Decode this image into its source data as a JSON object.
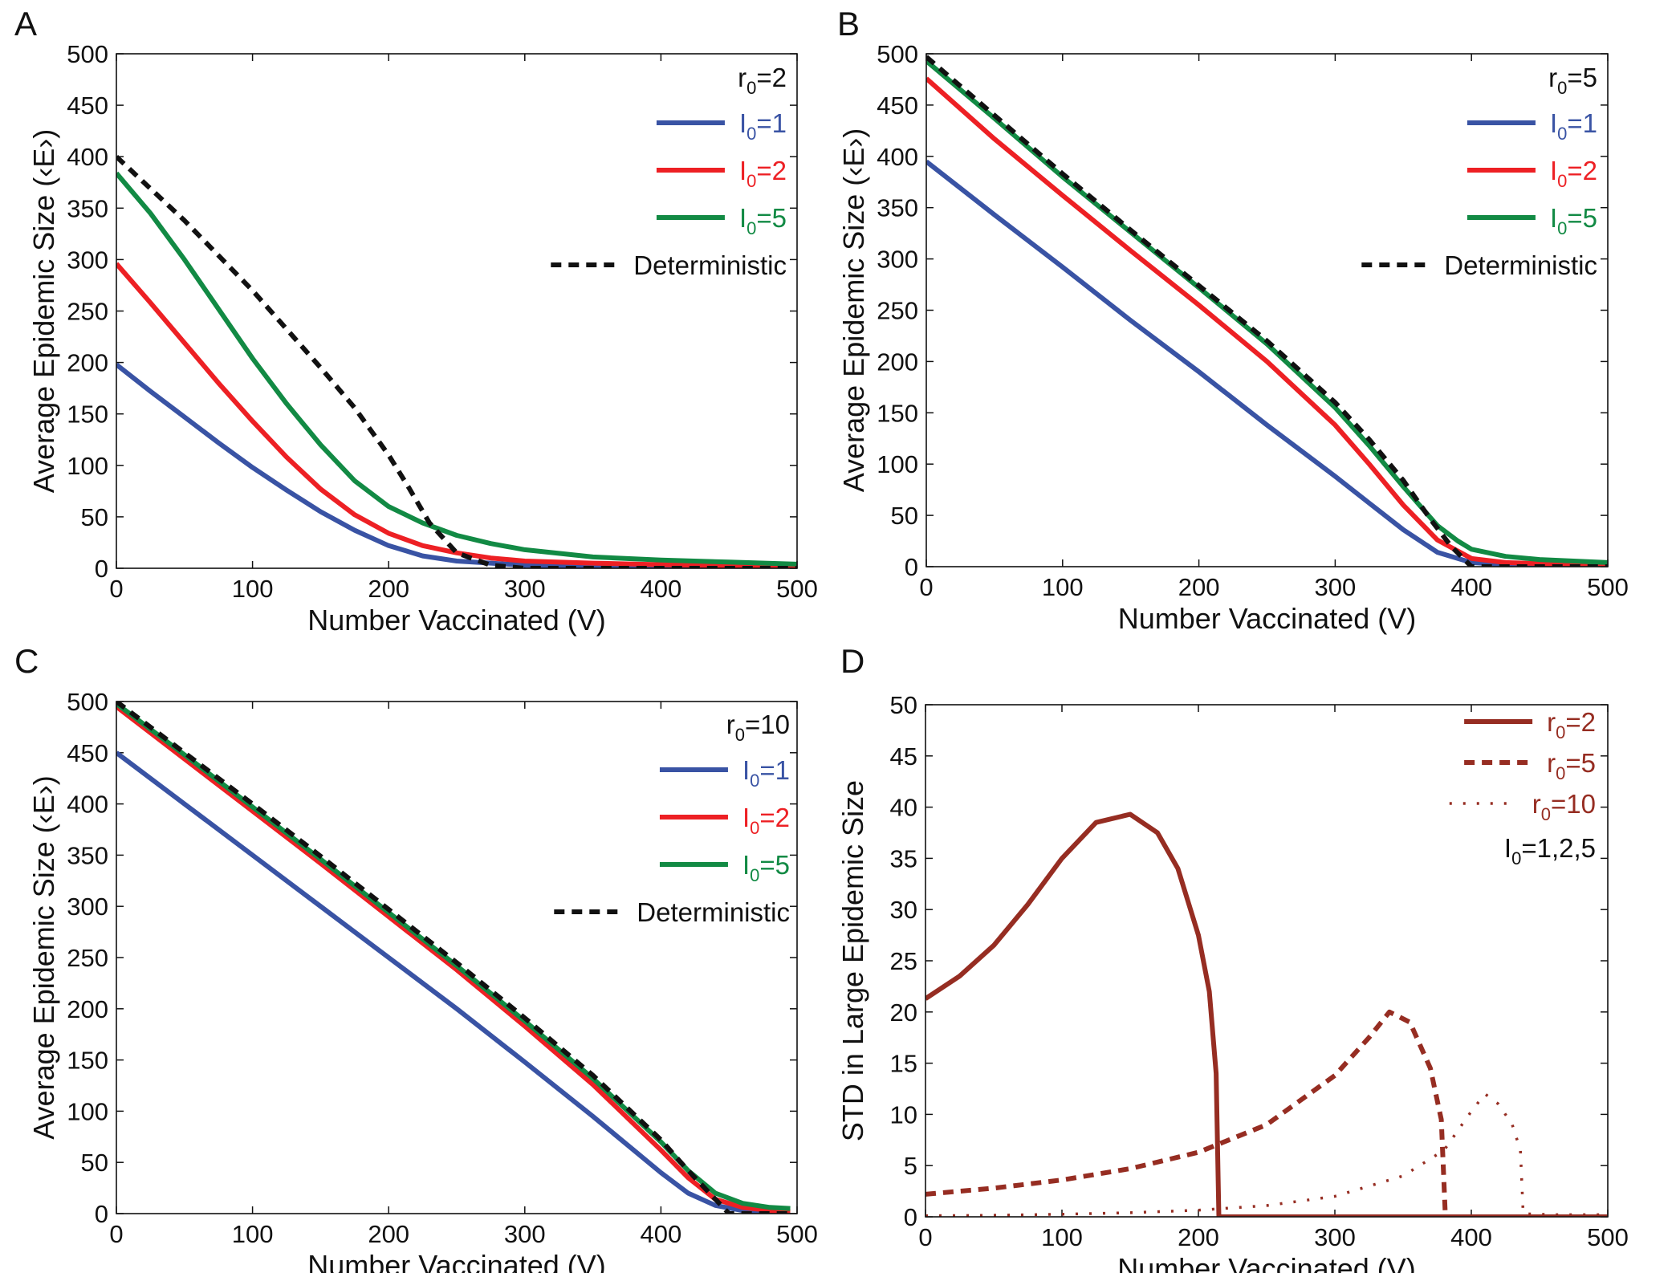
{
  "colors": {
    "blue": "#3953a4",
    "red": "#ed2024",
    "green": "#128a44",
    "black": "#111111",
    "brown": "#962d22"
  },
  "chart_data": [
    {
      "type": "line",
      "panel_label": "A",
      "xlabel": "Number Vaccinated (V)",
      "ylabel": "Average Epidemic Size (‹E›)",
      "xlim": [
        0,
        500
      ],
      "ylim": [
        0,
        500
      ],
      "xticks": [
        "0",
        "100",
        "200",
        "300",
        "400",
        "500"
      ],
      "yticks": [
        "0",
        "50",
        "100",
        "150",
        "200",
        "250",
        "300",
        "350",
        "400",
        "450",
        "500"
      ],
      "legend_title": {
        "main": "r",
        "sub": "0",
        "tail": "=2"
      },
      "legend": [
        {
          "main": "I",
          "sub": "0",
          "tail": "=1",
          "color_key": "blue",
          "style": "solid"
        },
        {
          "main": "I",
          "sub": "0",
          "tail": "=2",
          "color_key": "red",
          "style": "solid"
        },
        {
          "main": "I",
          "sub": "0",
          "tail": "=5",
          "color_key": "green",
          "style": "solid"
        },
        {
          "main": "Deterministic",
          "sub": "",
          "tail": "",
          "color_key": "black",
          "style": "dashed"
        }
      ],
      "series": [
        {
          "name": "I0=1",
          "color_key": "blue",
          "style": "solid",
          "x": [
            0,
            25,
            50,
            75,
            100,
            125,
            150,
            175,
            200,
            225,
            250,
            300,
            350,
            400,
            450,
            500
          ],
          "y": [
            198,
            172,
            147,
            122,
            98,
            76,
            55,
            37,
            22,
            12,
            7,
            3,
            2,
            1.5,
            1.2,
            1
          ]
        },
        {
          "name": "I0=2",
          "color_key": "red",
          "style": "solid",
          "x": [
            0,
            25,
            50,
            75,
            100,
            125,
            150,
            175,
            200,
            225,
            250,
            275,
            300,
            350,
            400,
            450,
            500
          ],
          "y": [
            296,
            258,
            219,
            180,
            143,
            108,
            77,
            52,
            34,
            22,
            15,
            10,
            7,
            5,
            3.5,
            2.5,
            2
          ]
        },
        {
          "name": "I0=5",
          "color_key": "green",
          "style": "solid",
          "x": [
            0,
            25,
            50,
            75,
            100,
            125,
            150,
            175,
            200,
            225,
            250,
            275,
            300,
            350,
            400,
            450,
            500
          ],
          "y": [
            384,
            345,
            300,
            252,
            204,
            160,
            120,
            85,
            60,
            44,
            32,
            24,
            18,
            11,
            8,
            6,
            4
          ]
        },
        {
          "name": "Deterministic",
          "color_key": "black",
          "style": "dashed",
          "x": [
            0,
            50,
            100,
            150,
            175,
            200,
            215,
            230,
            250,
            275,
            300,
            350,
            400,
            450,
            500
          ],
          "y": [
            400,
            338,
            270,
            195,
            156,
            110,
            78,
            44,
            15,
            3,
            0,
            0,
            0,
            0,
            0
          ]
        }
      ]
    },
    {
      "type": "line",
      "panel_label": "B",
      "xlabel": "Number Vaccinated (V)",
      "ylabel": "Average Epidemic Size (‹E›)",
      "xlim": [
        0,
        500
      ],
      "ylim": [
        0,
        500
      ],
      "xticks": [
        "0",
        "100",
        "200",
        "300",
        "400",
        "500"
      ],
      "yticks": [
        "0",
        "50",
        "100",
        "150",
        "200",
        "250",
        "300",
        "350",
        "400",
        "450",
        "500"
      ],
      "legend_title": {
        "main": "r",
        "sub": "0",
        "tail": "=5"
      },
      "legend": [
        {
          "main": "I",
          "sub": "0",
          "tail": "=1",
          "color_key": "blue",
          "style": "solid"
        },
        {
          "main": "I",
          "sub": "0",
          "tail": "=2",
          "color_key": "red",
          "style": "solid"
        },
        {
          "main": "I",
          "sub": "0",
          "tail": "=5",
          "color_key": "green",
          "style": "solid"
        },
        {
          "main": "Deterministic",
          "sub": "",
          "tail": "",
          "color_key": "black",
          "style": "dashed"
        }
      ],
      "series": [
        {
          "name": "I0=1",
          "color_key": "blue",
          "style": "solid",
          "x": [
            0,
            50,
            100,
            150,
            200,
            250,
            300,
            325,
            350,
            375,
            400,
            425,
            450,
            500
          ],
          "y": [
            395,
            343,
            292,
            240,
            190,
            138,
            88,
            62,
            36,
            14,
            4,
            2,
            1.5,
            1
          ]
        },
        {
          "name": "I0=2",
          "color_key": "red",
          "style": "solid",
          "x": [
            0,
            50,
            100,
            150,
            200,
            250,
            300,
            325,
            350,
            375,
            400,
            425,
            450,
            500
          ],
          "y": [
            476,
            417,
            362,
            308,
            255,
            200,
            138,
            100,
            60,
            26,
            8,
            4,
            3,
            2
          ]
        },
        {
          "name": "I0=5",
          "color_key": "green",
          "style": "solid",
          "x": [
            0,
            50,
            100,
            150,
            200,
            250,
            300,
            325,
            350,
            375,
            390,
            400,
            425,
            450,
            500
          ],
          "y": [
            493,
            437,
            380,
            326,
            272,
            217,
            155,
            118,
            78,
            40,
            25,
            17,
            10,
            7,
            4
          ]
        },
        {
          "name": "Deterministic",
          "color_key": "black",
          "style": "dashed",
          "x": [
            0,
            50,
            100,
            150,
            200,
            250,
            300,
            325,
            350,
            370,
            385,
            400,
            425,
            450,
            500
          ],
          "y": [
            497,
            440,
            383,
            328,
            274,
            220,
            160,
            124,
            84,
            46,
            20,
            0,
            0,
            0,
            0
          ]
        }
      ]
    },
    {
      "type": "line",
      "panel_label": "C",
      "xlabel": "Number Vaccinated (V)",
      "ylabel": "Average Epidemic Size (‹E›)",
      "xlim": [
        0,
        500
      ],
      "ylim": [
        0,
        500
      ],
      "xticks": [
        "0",
        "100",
        "200",
        "300",
        "400",
        "500"
      ],
      "yticks": [
        "0",
        "50",
        "100",
        "150",
        "200",
        "250",
        "300",
        "350",
        "400",
        "450",
        "500"
      ],
      "legend_title": {
        "main": "r",
        "sub": "0",
        "tail": "=10"
      },
      "legend": [
        {
          "main": "I",
          "sub": "0",
          "tail": "=1",
          "color_key": "blue",
          "style": "solid"
        },
        {
          "main": "I",
          "sub": "0",
          "tail": "=2",
          "color_key": "red",
          "style": "solid"
        },
        {
          "main": "I",
          "sub": "0",
          "tail": "=5",
          "color_key": "green",
          "style": "solid"
        },
        {
          "main": "Deterministic",
          "sub": "",
          "tail": "",
          "color_key": "black",
          "style": "dashed"
        }
      ],
      "series": [
        {
          "name": "I0=1",
          "color_key": "blue",
          "style": "solid",
          "x": [
            0,
            50,
            100,
            150,
            200,
            250,
            300,
            350,
            400,
            420,
            440,
            460,
            480,
            495
          ],
          "y": [
            450,
            400,
            350,
            300,
            250,
            200,
            148,
            95,
            40,
            20,
            8,
            3,
            1,
            1
          ]
        },
        {
          "name": "I0=2",
          "color_key": "red",
          "style": "solid",
          "x": [
            0,
            50,
            100,
            150,
            200,
            250,
            300,
            350,
            400,
            420,
            440,
            460,
            480,
            495
          ],
          "y": [
            495,
            444,
            393,
            342,
            290,
            238,
            183,
            126,
            62,
            35,
            14,
            6,
            3,
            2
          ]
        },
        {
          "name": "I0=5",
          "color_key": "green",
          "style": "solid",
          "x": [
            0,
            50,
            100,
            150,
            200,
            250,
            300,
            350,
            400,
            420,
            440,
            460,
            480,
            495
          ],
          "y": [
            498,
            448,
            397,
            346,
            294,
            242,
            188,
            132,
            70,
            42,
            20,
            10,
            6,
            5
          ]
        },
        {
          "name": "Deterministic",
          "color_key": "black",
          "style": "dashed",
          "x": [
            0,
            50,
            100,
            150,
            200,
            250,
            300,
            350,
            400,
            420,
            440,
            450,
            460,
            480,
            495
          ],
          "y": [
            500,
            450,
            400,
            349,
            297,
            245,
            191,
            135,
            72,
            42,
            14,
            0,
            0,
            0,
            0
          ]
        }
      ]
    },
    {
      "type": "line",
      "panel_label": "D",
      "xlabel": "Number Vaccinated (V)",
      "ylabel": "STD in Large Epidemic Size",
      "xlim": [
        0,
        500
      ],
      "ylim": [
        0,
        50
      ],
      "xticks": [
        "0",
        "100",
        "200",
        "300",
        "400",
        "500"
      ],
      "yticks": [
        "0",
        "5",
        "10",
        "15",
        "20",
        "25",
        "30",
        "35",
        "40",
        "45",
        "50"
      ],
      "legend_title": null,
      "legend": [
        {
          "main": "r",
          "sub": "0",
          "tail": "=2",
          "color_key": "brown",
          "style": "solid"
        },
        {
          "main": "r",
          "sub": "0",
          "tail": "=5",
          "color_key": "brown",
          "style": "dashed"
        },
        {
          "main": "r",
          "sub": "0",
          "tail": "=10",
          "color_key": "brown",
          "style": "dotted"
        }
      ],
      "annotation": {
        "main": "I",
        "sub": "0",
        "tail": "=1,2,5"
      },
      "series": [
        {
          "name": "r0=2",
          "color_key": "brown",
          "style": "solid",
          "x": [
            0,
            25,
            50,
            75,
            100,
            125,
            150,
            170,
            185,
            200,
            208,
            213,
            215,
            215,
            250,
            300,
            350,
            400,
            450,
            500
          ],
          "y": [
            21.3,
            23.5,
            26.5,
            30.5,
            35,
            38.5,
            39.3,
            37.5,
            34,
            27.5,
            22,
            14,
            0,
            0,
            0,
            0,
            0,
            0,
            0,
            0
          ]
        },
        {
          "name": "r0=5",
          "color_key": "brown",
          "style": "dashed",
          "x": [
            0,
            50,
            100,
            150,
            200,
            250,
            300,
            325,
            340,
            355,
            370,
            378,
            381,
            381,
            400,
            450,
            500
          ],
          "y": [
            2.2,
            2.8,
            3.6,
            4.7,
            6.3,
            9,
            13.8,
            17.5,
            20,
            19,
            14.5,
            9.5,
            0,
            0,
            0,
            0,
            0
          ]
        },
        {
          "name": "r0=10",
          "color_key": "brown",
          "style": "dotted",
          "x": [
            0,
            50,
            100,
            150,
            200,
            250,
            300,
            350,
            380,
            400,
            410,
            420,
            430,
            436,
            438,
            438,
            460,
            480,
            500
          ],
          "y": [
            0.1,
            0.15,
            0.25,
            0.4,
            0.65,
            1.1,
            2,
            4,
            6.5,
            10.3,
            12,
            11,
            9,
            6.5,
            0.3,
            0.3,
            0.2,
            0.2,
            0.2
          ]
        }
      ]
    }
  ]
}
